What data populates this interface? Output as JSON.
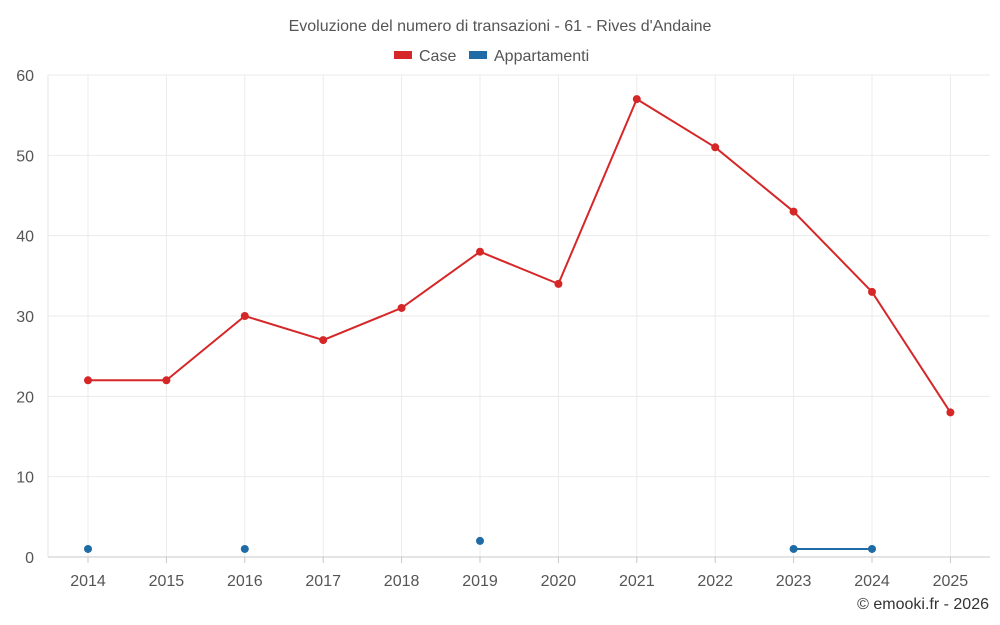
{
  "chart_data": {
    "type": "line",
    "title": "Evoluzione del numero di transazioni - 61 - Rives d'Andaine",
    "categories": [
      "2014",
      "2015",
      "2016",
      "2017",
      "2018",
      "2019",
      "2020",
      "2021",
      "2022",
      "2023",
      "2024",
      "2025"
    ],
    "ylim": [
      0,
      60
    ],
    "yticks": [
      0,
      10,
      20,
      30,
      40,
      50,
      60
    ],
    "grid": true,
    "legend_position": "top-center",
    "series": [
      {
        "name": "Case",
        "color": "#d62728",
        "values": [
          22,
          22,
          30,
          27,
          31,
          38,
          34,
          57,
          51,
          43,
          33,
          18
        ]
      },
      {
        "name": "Appartamenti",
        "color": "#1f6ba5",
        "values": [
          1,
          null,
          1,
          null,
          null,
          2,
          null,
          null,
          null,
          1,
          1,
          null
        ]
      }
    ],
    "credit": "© emooki.fr - 2026"
  }
}
